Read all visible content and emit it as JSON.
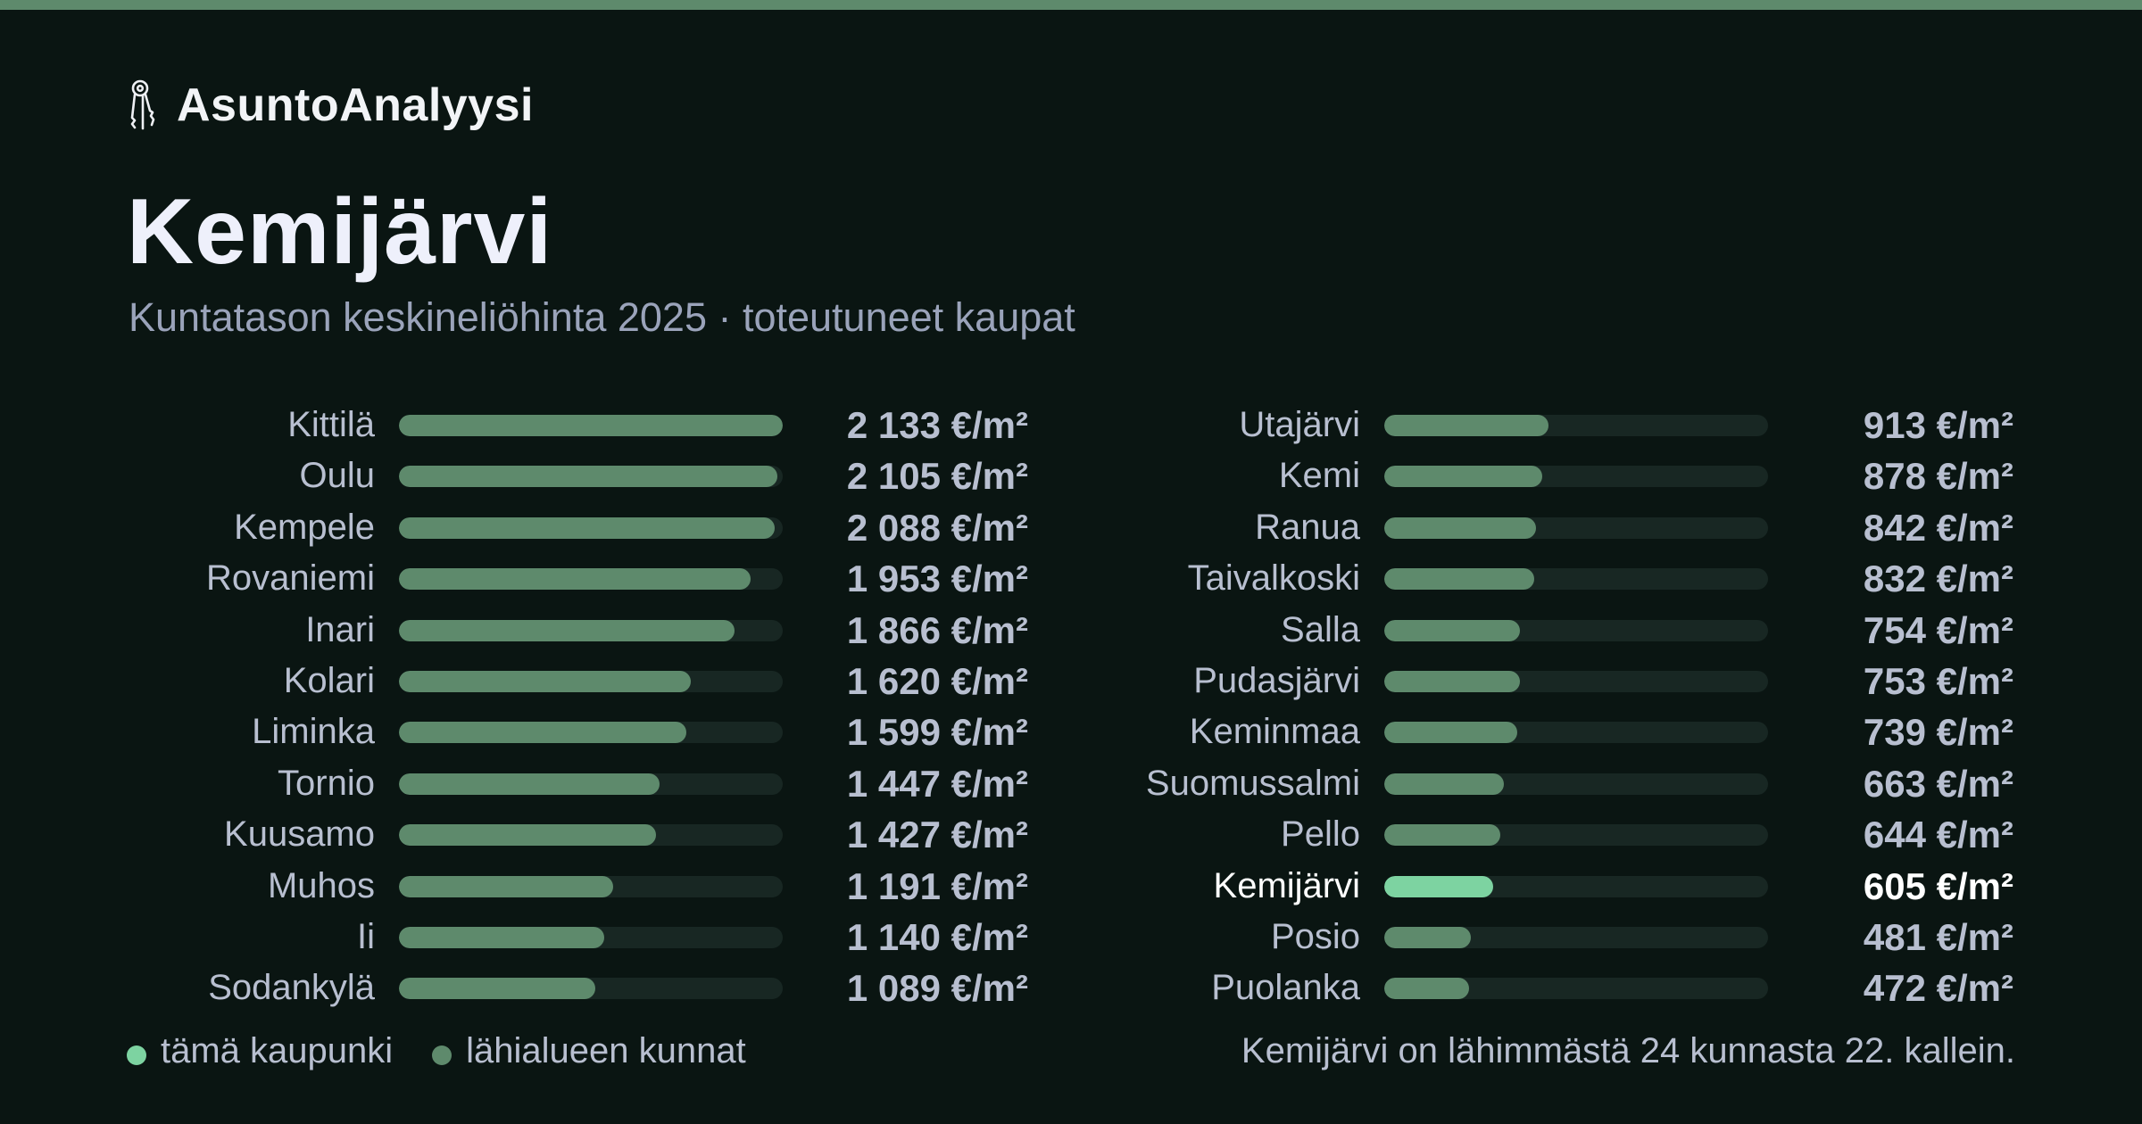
{
  "brand": {
    "name": "AsuntoAnalyysi",
    "icon": "keys-icon"
  },
  "title": "Kemijärvi",
  "subtitle": "Kuntatason keskineliöhinta 2025 · toteutuneet kaupat",
  "colors": {
    "background": "#0a1512",
    "accent_bar": "#5e8a6c",
    "highlight": "#7dd3a1",
    "neighbor": "#5e8a6c",
    "track": "#182723"
  },
  "legend": [
    {
      "label": "tämä kaupunki",
      "color": "#7dd3a1"
    },
    {
      "label": "lähialueen kunnat",
      "color": "#5e8a6c"
    }
  ],
  "note": "Kemijärvi on lähimmästä 24 kunnasta 22. kallein.",
  "chart_data": {
    "type": "bar",
    "orientation": "horizontal",
    "unit": "€/m²",
    "highlight": "Kemijärvi",
    "xlim": [
      0,
      2133
    ],
    "rows": [
      {
        "name": "Kittilä",
        "value": 2133,
        "label": "2 133 €/m²"
      },
      {
        "name": "Oulu",
        "value": 2105,
        "label": "2 105 €/m²"
      },
      {
        "name": "Kempele",
        "value": 2088,
        "label": "2 088 €/m²"
      },
      {
        "name": "Rovaniemi",
        "value": 1953,
        "label": "1 953 €/m²"
      },
      {
        "name": "Inari",
        "value": 1866,
        "label": "1 866 €/m²"
      },
      {
        "name": "Kolari",
        "value": 1620,
        "label": "1 620 €/m²"
      },
      {
        "name": "Liminka",
        "value": 1599,
        "label": "1 599 €/m²"
      },
      {
        "name": "Tornio",
        "value": 1447,
        "label": "1 447 €/m²"
      },
      {
        "name": "Kuusamo",
        "value": 1427,
        "label": "1 427 €/m²"
      },
      {
        "name": "Muhos",
        "value": 1191,
        "label": "1 191 €/m²"
      },
      {
        "name": "Ii",
        "value": 1140,
        "label": "1 140 €/m²"
      },
      {
        "name": "Sodankylä",
        "value": 1089,
        "label": "1 089 €/m²"
      },
      {
        "name": "Utajärvi",
        "value": 913,
        "label": "913 €/m²"
      },
      {
        "name": "Kemi",
        "value": 878,
        "label": "878 €/m²"
      },
      {
        "name": "Ranua",
        "value": 842,
        "label": "842 €/m²"
      },
      {
        "name": "Taivalkoski",
        "value": 832,
        "label": "832 €/m²"
      },
      {
        "name": "Salla",
        "value": 754,
        "label": "754 €/m²"
      },
      {
        "name": "Pudasjärvi",
        "value": 753,
        "label": "753 €/m²"
      },
      {
        "name": "Keminmaa",
        "value": 739,
        "label": "739 €/m²"
      },
      {
        "name": "Suomussalmi",
        "value": 663,
        "label": "663 €/m²"
      },
      {
        "name": "Pello",
        "value": 644,
        "label": "644 €/m²"
      },
      {
        "name": "Kemijärvi",
        "value": 605,
        "label": "605 €/m²"
      },
      {
        "name": "Posio",
        "value": 481,
        "label": "481 €/m²"
      },
      {
        "name": "Puolanka",
        "value": 472,
        "label": "472 €/m²"
      }
    ]
  }
}
